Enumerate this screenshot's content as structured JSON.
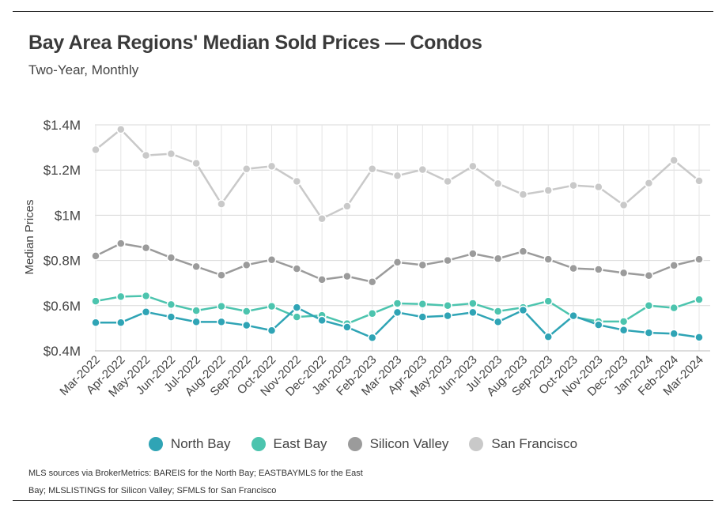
{
  "header": {
    "title": "Bay Area Regions' Median Sold Prices — Condos",
    "subtitle": "Two-Year, Monthly"
  },
  "source": {
    "line1": "MLS sources via BrokerMetrics: BAREIS for the North Bay; EASTBAYMLS for the East",
    "line2": "Bay; MLSLISTINGS for Silicon Valley; SFMLS for San Francisco"
  },
  "chart_data": {
    "type": "line",
    "title": "Bay Area Regions' Median Sold Prices — Condos",
    "subtitle": "Two-Year, Monthly",
    "xlabel": "",
    "ylabel": "Median Prices",
    "ylim": [
      400000,
      1400000
    ],
    "yticks": [
      {
        "value": 400000,
        "label": "$0.4M"
      },
      {
        "value": 600000,
        "label": "$0.6M"
      },
      {
        "value": 800000,
        "label": "$0.8M"
      },
      {
        "value": 1000000,
        "label": "$1M"
      },
      {
        "value": 1200000,
        "label": "$1.2M"
      },
      {
        "value": 1400000,
        "label": "$1.4M"
      }
    ],
    "grid": true,
    "legend": "bottom",
    "categories": [
      "Mar-2022",
      "Apr-2022",
      "May-2022",
      "Jun-2022",
      "Jul-2022",
      "Aug-2022",
      "Sep-2022",
      "Oct-2022",
      "Nov-2022",
      "Dec-2022",
      "Jan-2023",
      "Feb-2023",
      "Mar-2023",
      "Apr-2023",
      "May-2023",
      "Jun-2023",
      "Jul-2023",
      "Aug-2023",
      "Sep-2023",
      "Oct-2023",
      "Nov-2023",
      "Dec-2023",
      "Jan-2024",
      "Feb-2024",
      "Mar-2024"
    ],
    "series": [
      {
        "name": "North Bay",
        "color": "#2fa4b5",
        "values": [
          525000,
          525000,
          572000,
          550000,
          528000,
          528000,
          513000,
          490000,
          592000,
          535000,
          505000,
          458000,
          570000,
          550000,
          555000,
          570000,
          528000,
          580000,
          462000,
          555000,
          515000,
          492000,
          480000,
          476000,
          460000
        ]
      },
      {
        "name": "East Bay",
        "color": "#4cc4ae",
        "values": [
          620000,
          640000,
          643000,
          605000,
          578000,
          597000,
          575000,
          597000,
          550000,
          557000,
          520000,
          565000,
          610000,
          607000,
          600000,
          610000,
          575000,
          592000,
          620000,
          550000,
          530000,
          530000,
          600000,
          590000,
          627000
        ]
      },
      {
        "name": "Silicon Valley",
        "color": "#9b9b9b",
        "values": [
          820000,
          875000,
          856000,
          812000,
          773000,
          735000,
          780000,
          803000,
          763000,
          715000,
          730000,
          705000,
          792000,
          780000,
          800000,
          830000,
          808000,
          840000,
          805000,
          765000,
          760000,
          745000,
          733000,
          778000,
          805000
        ]
      },
      {
        "name": "San Francisco",
        "color": "#c9c9c9",
        "values": [
          1290000,
          1380000,
          1265000,
          1272000,
          1230000,
          1050000,
          1205000,
          1217000,
          1150000,
          985000,
          1040000,
          1205000,
          1175000,
          1202000,
          1150000,
          1217000,
          1140000,
          1092000,
          1110000,
          1132000,
          1125000,
          1045000,
          1142000,
          1243000,
          1152000
        ]
      }
    ]
  }
}
